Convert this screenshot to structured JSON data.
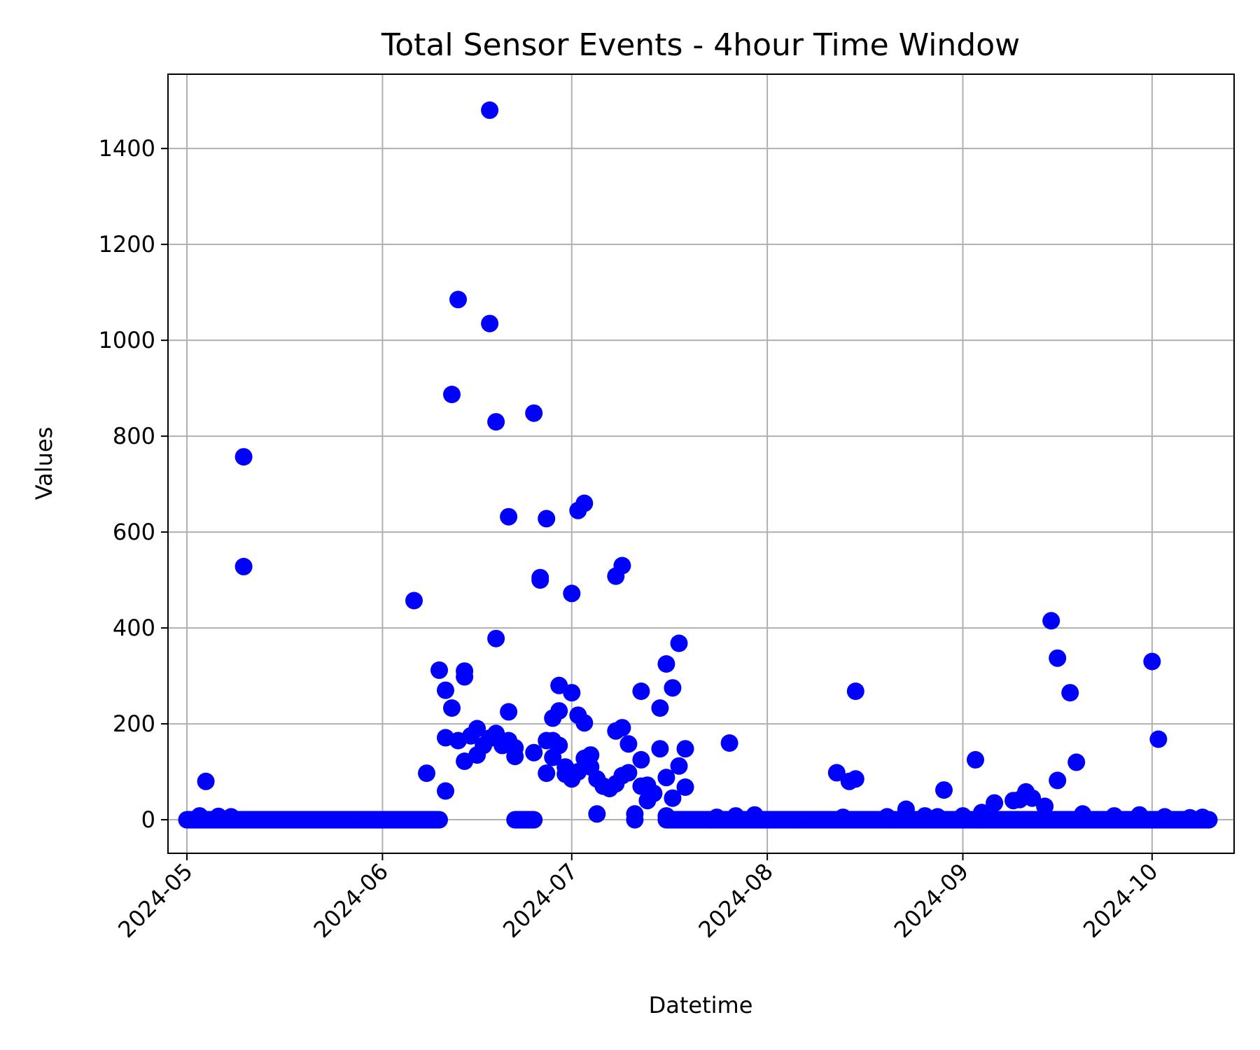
{
  "chart_data": {
    "type": "scatter",
    "title": "Total Sensor Events - 4hour Time Window",
    "xlabel": "Datetime",
    "ylabel": "Values",
    "x_axis_type": "date",
    "xlim": [
      "2024-04-28",
      "2024-10-14"
    ],
    "ylim": [
      -70,
      1555
    ],
    "grid": true,
    "marker_color": "#0000ff",
    "x_ticks": [
      "2024-05",
      "2024-06",
      "2024-07",
      "2024-08",
      "2024-09",
      "2024-10"
    ],
    "y_ticks": [
      "0",
      "200",
      "400",
      "600",
      "800",
      "1000",
      "1200",
      "1400"
    ],
    "series": [
      {
        "points": [
          [
            "2024-05-04",
            80
          ],
          [
            "2024-05-10",
            757
          ],
          [
            "2024-05-10",
            528
          ],
          [
            "2024-06-06",
            457
          ],
          [
            "2024-06-08",
            97
          ],
          [
            "2024-06-10",
            312
          ],
          [
            "2024-06-11",
            270
          ],
          [
            "2024-06-11",
            171
          ],
          [
            "2024-06-11",
            60
          ],
          [
            "2024-06-12",
            887
          ],
          [
            "2024-06-12",
            233
          ],
          [
            "2024-06-13",
            1085
          ],
          [
            "2024-06-13",
            165
          ],
          [
            "2024-06-14",
            310
          ],
          [
            "2024-06-14",
            298
          ],
          [
            "2024-06-14",
            122
          ],
          [
            "2024-06-15",
            175
          ],
          [
            "2024-06-16",
            135
          ],
          [
            "2024-06-16",
            190
          ],
          [
            "2024-06-17",
            155
          ],
          [
            "2024-06-18",
            1035
          ],
          [
            "2024-06-18",
            1480
          ],
          [
            "2024-06-18",
            170
          ],
          [
            "2024-06-19",
            378
          ],
          [
            "2024-06-19",
            830
          ],
          [
            "2024-06-19",
            180
          ],
          [
            "2024-06-20",
            155
          ],
          [
            "2024-06-21",
            632
          ],
          [
            "2024-06-21",
            225
          ],
          [
            "2024-06-21",
            165
          ],
          [
            "2024-06-22",
            150
          ],
          [
            "2024-06-22",
            132
          ],
          [
            "2024-06-25",
            848
          ],
          [
            "2024-06-25",
            140
          ],
          [
            "2024-06-26",
            505
          ],
          [
            "2024-06-26",
            500
          ],
          [
            "2024-06-27",
            97
          ],
          [
            "2024-06-27",
            165
          ],
          [
            "2024-06-27",
            628
          ],
          [
            "2024-06-28",
            165
          ],
          [
            "2024-06-28",
            212
          ],
          [
            "2024-06-28",
            130
          ],
          [
            "2024-06-29",
            227
          ],
          [
            "2024-06-29",
            280
          ],
          [
            "2024-06-29",
            155
          ],
          [
            "2024-06-30",
            95
          ],
          [
            "2024-06-30",
            110
          ],
          [
            "2024-07-01",
            85
          ],
          [
            "2024-07-01",
            472
          ],
          [
            "2024-07-01",
            265
          ],
          [
            "2024-07-02",
            100
          ],
          [
            "2024-07-02",
            645
          ],
          [
            "2024-07-02",
            218
          ],
          [
            "2024-07-03",
            660
          ],
          [
            "2024-07-03",
            202
          ],
          [
            "2024-07-03",
            128
          ],
          [
            "2024-07-04",
            135
          ],
          [
            "2024-07-04",
            110
          ],
          [
            "2024-07-05",
            85
          ],
          [
            "2024-07-05",
            12
          ],
          [
            "2024-07-06",
            70
          ],
          [
            "2024-07-07",
            65
          ],
          [
            "2024-07-08",
            75
          ],
          [
            "2024-07-08",
            185
          ],
          [
            "2024-07-08",
            508
          ],
          [
            "2024-07-09",
            530
          ],
          [
            "2024-07-09",
            192
          ],
          [
            "2024-07-09",
            92
          ],
          [
            "2024-07-10",
            158
          ],
          [
            "2024-07-10",
            98
          ],
          [
            "2024-07-11",
            0
          ],
          [
            "2024-07-11",
            12
          ],
          [
            "2024-07-12",
            70
          ],
          [
            "2024-07-12",
            268
          ],
          [
            "2024-07-12",
            125
          ],
          [
            "2024-07-13",
            40
          ],
          [
            "2024-07-13",
            72
          ],
          [
            "2024-07-14",
            55
          ],
          [
            "2024-07-15",
            148
          ],
          [
            "2024-07-15",
            233
          ],
          [
            "2024-07-16",
            325
          ],
          [
            "2024-07-16",
            88
          ],
          [
            "2024-07-16",
            8
          ],
          [
            "2024-07-17",
            45
          ],
          [
            "2024-07-17",
            275
          ],
          [
            "2024-07-18",
            368
          ],
          [
            "2024-07-18",
            112
          ],
          [
            "2024-07-19",
            148
          ],
          [
            "2024-07-19",
            68
          ],
          [
            "2024-07-26",
            160
          ],
          [
            "2024-08-12",
            98
          ],
          [
            "2024-08-14",
            80
          ],
          [
            "2024-08-15",
            85
          ],
          [
            "2024-08-15",
            268
          ],
          [
            "2024-08-23",
            22
          ],
          [
            "2024-08-29",
            62
          ],
          [
            "2024-09-03",
            125
          ],
          [
            "2024-09-06",
            35
          ],
          [
            "2024-09-09",
            40
          ],
          [
            "2024-09-10",
            42
          ],
          [
            "2024-09-11",
            58
          ],
          [
            "2024-09-12",
            45
          ],
          [
            "2024-09-14",
            28
          ],
          [
            "2024-09-15",
            415
          ],
          [
            "2024-09-16",
            337
          ],
          [
            "2024-09-16",
            82
          ],
          [
            "2024-09-18",
            265
          ],
          [
            "2024-09-19",
            120
          ],
          [
            "2024-09-20",
            12
          ],
          [
            "2024-10-01",
            330
          ],
          [
            "2024-10-02",
            168
          ]
        ],
        "baseline_segments": [
          {
            "from": "2024-05-01",
            "to": "2024-06-10",
            "value": 0,
            "note_points": [
              [
                "2024-05-03",
                8
              ],
              [
                "2024-05-06",
                7
              ],
              [
                "2024-05-08",
                6
              ]
            ]
          },
          {
            "from": "2024-06-22",
            "to": "2024-06-25",
            "value": 0
          },
          {
            "from": "2024-07-16",
            "to": "2024-10-10",
            "value": 0,
            "note_points": [
              [
                "2024-07-24",
                5
              ],
              [
                "2024-07-27",
                8
              ],
              [
                "2024-07-30",
                10
              ],
              [
                "2024-08-13",
                5
              ],
              [
                "2024-08-20",
                6
              ],
              [
                "2024-08-26",
                8
              ],
              [
                "2024-08-28",
                6
              ],
              [
                "2024-09-01",
                8
              ],
              [
                "2024-09-04",
                15
              ],
              [
                "2024-09-25",
                8
              ],
              [
                "2024-09-29",
                10
              ],
              [
                "2024-10-03",
                6
              ],
              [
                "2024-10-07",
                4
              ],
              [
                "2024-10-09",
                5
              ]
            ]
          }
        ]
      }
    ]
  }
}
